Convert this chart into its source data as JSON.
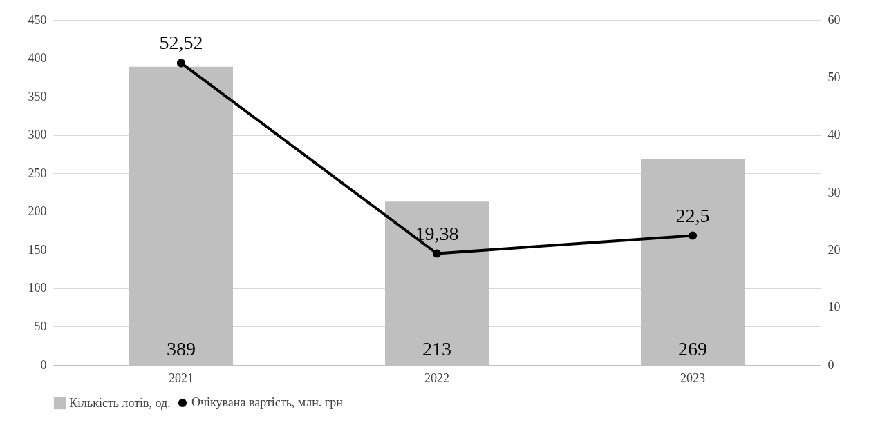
{
  "chart_data": {
    "type": "bar",
    "categories": [
      "2021",
      "2022",
      "2023"
    ],
    "series": [
      {
        "name": "Кількість лотів, од.",
        "color": "#bfbfbf",
        "values": [
          389,
          213,
          269
        ],
        "value_labels": [
          "389",
          "213",
          "269"
        ]
      },
      {
        "name": "Очікувана вартість, млн. грн",
        "type": "line",
        "axis": "y2",
        "color": "#000000",
        "values": [
          52.52,
          19.38,
          22.5
        ],
        "value_labels": [
          "52,52",
          "19,38",
          "22,5"
        ]
      }
    ],
    "ylim": [
      0,
      450
    ],
    "yticks": [
      0,
      50,
      100,
      150,
      200,
      250,
      300,
      350,
      400,
      450
    ],
    "y2lim": [
      0,
      60
    ],
    "y2ticks": [
      0,
      10,
      20,
      30,
      40,
      50,
      60
    ],
    "grid": "y",
    "legend": "bottom",
    "marker": "circle",
    "line_style": "solid"
  }
}
